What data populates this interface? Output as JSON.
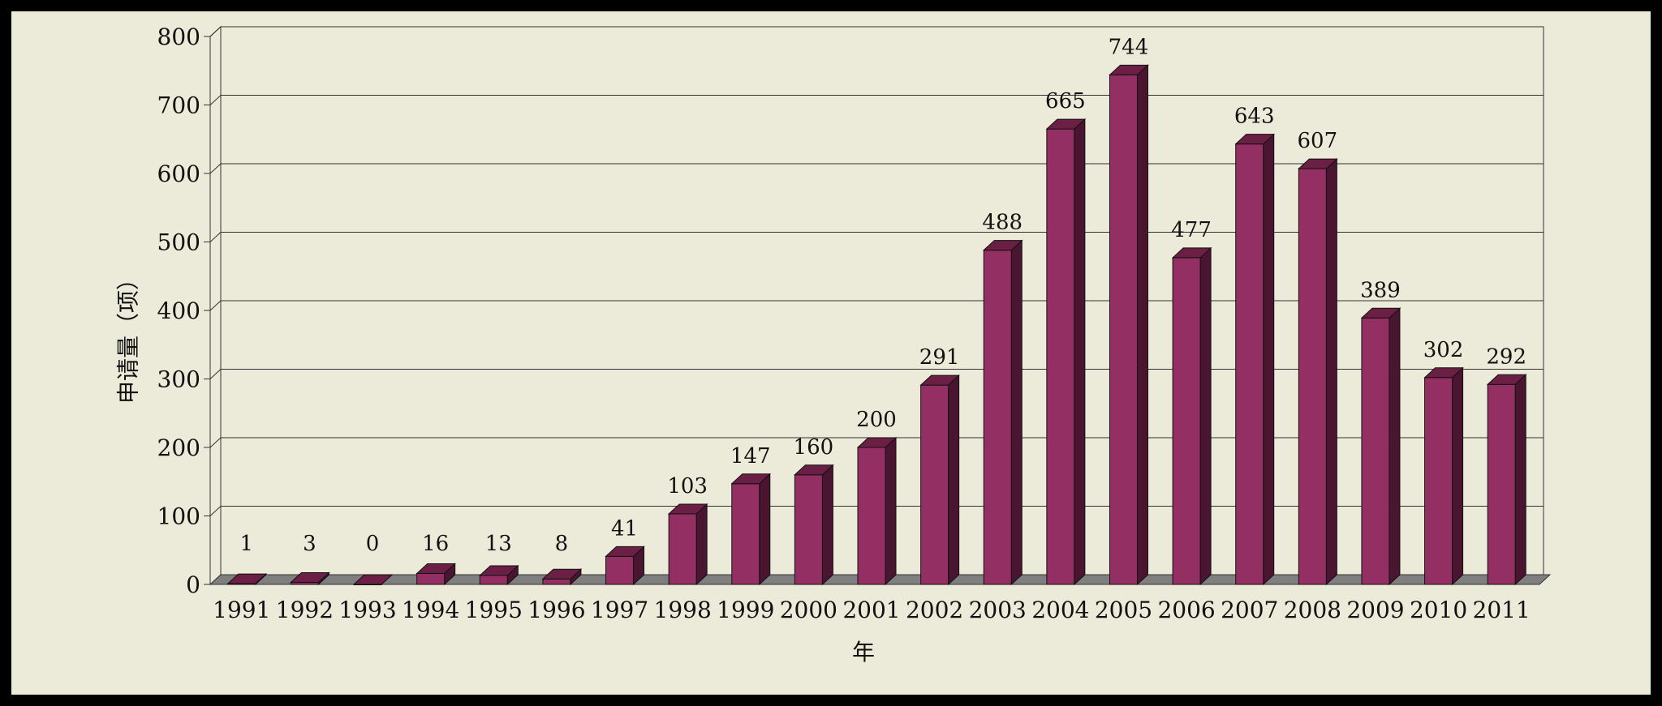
{
  "chart_data": {
    "type": "bar",
    "categories": [
      "1991",
      "1992",
      "1993",
      "1994",
      "1995",
      "1996",
      "1997",
      "1998",
      "1999",
      "2000",
      "2001",
      "2002",
      "2003",
      "2004",
      "2005",
      "2006",
      "2007",
      "2008",
      "2009",
      "2010",
      "2011"
    ],
    "values": [
      1,
      3,
      0,
      16,
      13,
      8,
      41,
      103,
      147,
      160,
      200,
      291,
      488,
      665,
      744,
      477,
      643,
      607,
      389,
      302,
      292
    ],
    "xlabel": "年",
    "ylabel": "申请量（项）",
    "ylim": [
      0,
      800
    ],
    "yticks": [
      0,
      100,
      200,
      300,
      400,
      500,
      600,
      700,
      800
    ],
    "grid": true,
    "legend": "none",
    "three_d": true
  },
  "colors": {
    "bar_front": "#932f63",
    "bar_top": "#6c1f44",
    "bar_side": "#4a1530",
    "background": "#ecead8",
    "floor": "#7f7f7f"
  }
}
